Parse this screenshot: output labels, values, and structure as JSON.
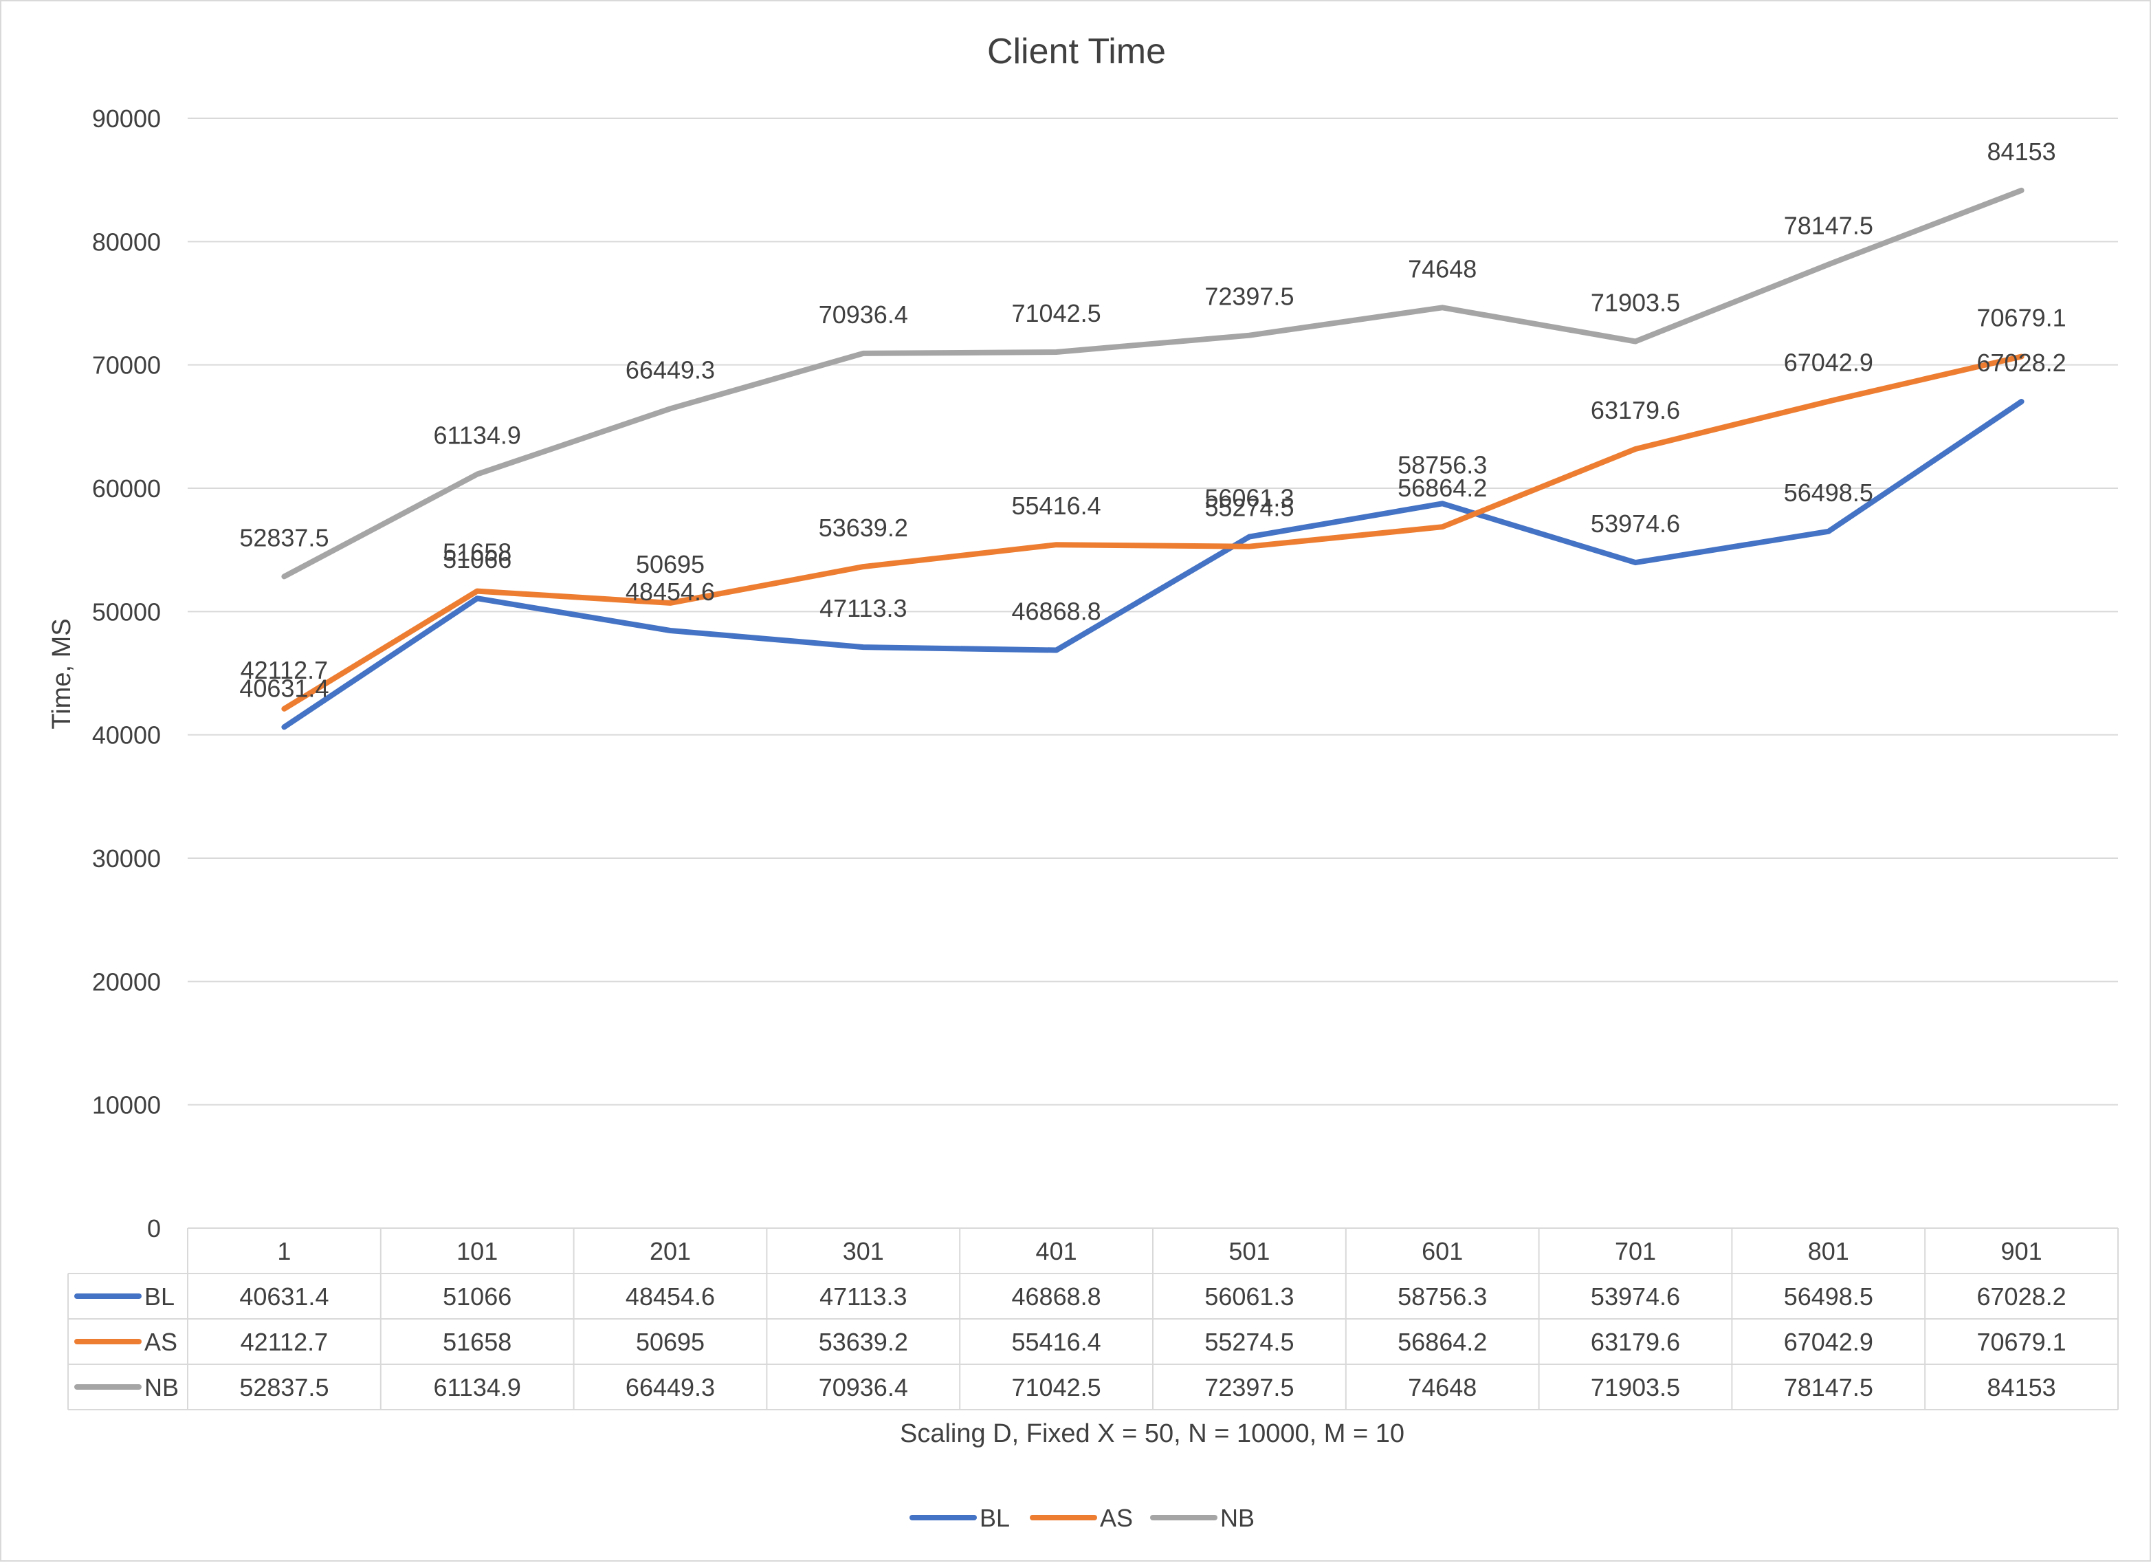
{
  "chart_data": {
    "type": "line",
    "title": "Client Time",
    "xlabel": "Scaling D, Fixed X = 50, N = 10000, M = 10",
    "ylabel": "Time, MS",
    "ylim": [
      0,
      90000
    ],
    "yticks": [
      "0",
      "10000",
      "20000",
      "30000",
      "40000",
      "50000",
      "60000",
      "70000",
      "80000",
      "90000"
    ],
    "categories": [
      "1",
      "101",
      "201",
      "301",
      "401",
      "501",
      "601",
      "701",
      "801",
      "901"
    ],
    "grid": true,
    "legend": "bottom",
    "data_table": true,
    "series": [
      {
        "name": "BL",
        "color": "#4472c4",
        "values": [
          40631.4,
          51066,
          48454.6,
          47113.3,
          46868.8,
          56061.3,
          58756.3,
          53974.6,
          56498.5,
          67028.2
        ],
        "labels": [
          "40631.4",
          "51066",
          "48454.6",
          "47113.3",
          "46868.8",
          "56061.3",
          "58756.3",
          "53974.6",
          "56498.5",
          "67028.2"
        ]
      },
      {
        "name": "AS",
        "color": "#ed7d31",
        "values": [
          42112.7,
          51658,
          50695,
          53639.2,
          55416.4,
          55274.5,
          56864.2,
          63179.6,
          67042.9,
          70679.1
        ],
        "labels": [
          "42112.7",
          "51658",
          "50695",
          "53639.2",
          "55416.4",
          "55274.5",
          "56864.2",
          "63179.6",
          "67042.9",
          "70679.1"
        ]
      },
      {
        "name": "NB",
        "color": "#a5a5a5",
        "values": [
          52837.5,
          61134.9,
          66449.3,
          70936.4,
          71042.5,
          72397.5,
          74648,
          71903.5,
          78147.5,
          84153
        ],
        "labels": [
          "52837.5",
          "61134.9",
          "66449.3",
          "70936.4",
          "71042.5",
          "72397.5",
          "74648",
          "71903.5",
          "78147.5",
          "84153"
        ]
      }
    ]
  }
}
